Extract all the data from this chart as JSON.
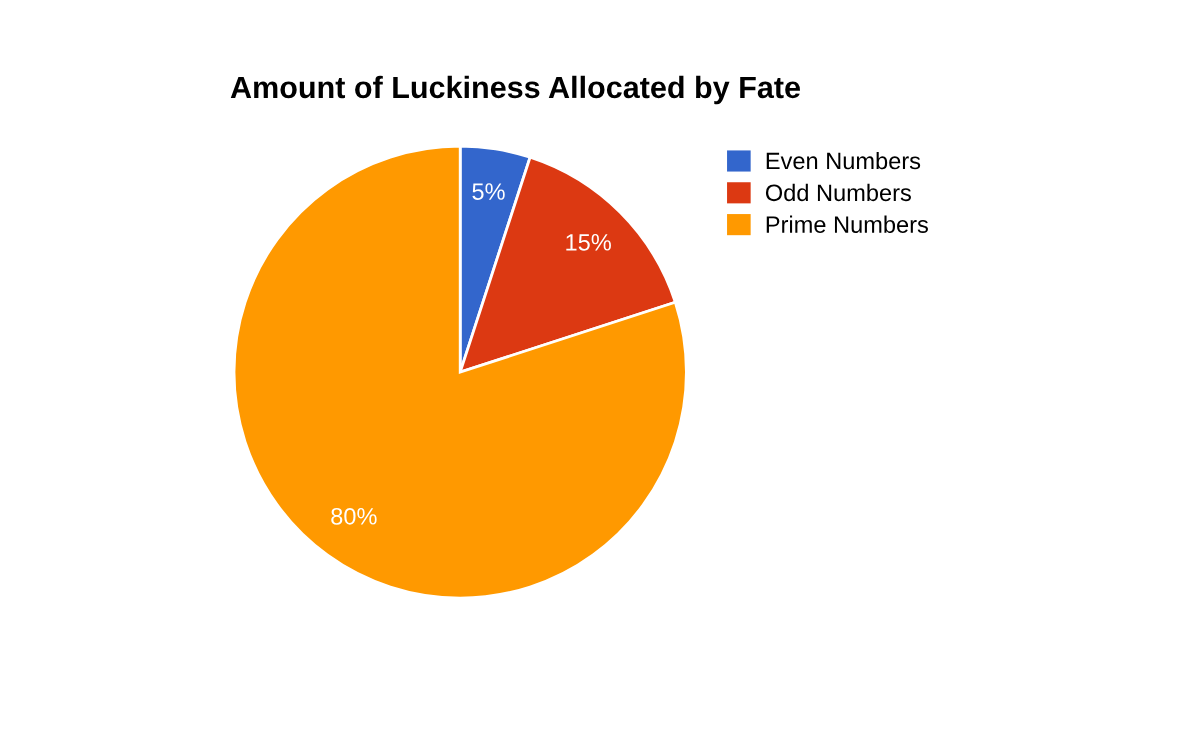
{
  "chart_data": {
    "type": "pie",
    "title": "Amount of Luckiness Allocated by Fate",
    "categories": [
      "Even Numbers",
      "Odd Numbers",
      "Prime Numbers"
    ],
    "values": [
      5,
      15,
      80
    ],
    "colors": [
      "#3366cc",
      "#dc3912",
      "#ff9900"
    ],
    "value_labels": [
      "5%",
      "15%",
      "80%"
    ],
    "legend": "right"
  }
}
